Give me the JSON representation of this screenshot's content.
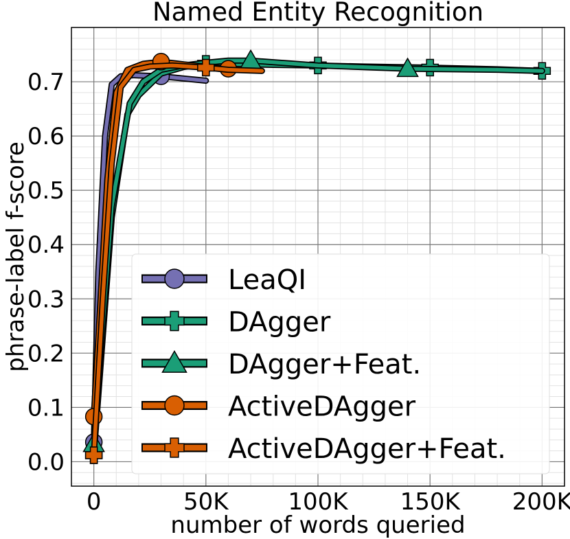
{
  "chart_data": {
    "type": "line",
    "title": "Named Entity Recognition",
    "xlabel": "number of words queried",
    "ylabel": "phrase-label f-score",
    "xlim": [
      -10000,
      210000
    ],
    "ylim": [
      -0.045,
      0.8
    ],
    "x_ticks": [
      0,
      50000,
      100000,
      150000,
      200000
    ],
    "x_tick_labels": [
      "0",
      "50K",
      "100K",
      "150K",
      "200K"
    ],
    "y_ticks": [
      0.0,
      0.1,
      0.2,
      0.3,
      0.4,
      0.5,
      0.6,
      0.7
    ],
    "y_tick_labels": [
      "0.0",
      "0.1",
      "0.2",
      "0.3",
      "0.4",
      "0.5",
      "0.6",
      "0.7"
    ],
    "grid": true,
    "legend_position": "bottom-right",
    "series": [
      {
        "name": "LeaQI",
        "color": "#7570b3",
        "marker": "circle",
        "x": [
          0,
          2000,
          5000,
          8000,
          12000,
          18000,
          30000,
          40000,
          50000
        ],
        "y": [
          0.036,
          0.35,
          0.6,
          0.695,
          0.71,
          0.712,
          0.71,
          0.706,
          0.702
        ],
        "markers_x": [
          0,
          30000
        ],
        "markers_y": [
          0.036,
          0.71
        ]
      },
      {
        "name": "DAgger",
        "color": "#1b9e77",
        "marker": "plus",
        "x": [
          0,
          8000,
          15000,
          20000,
          30000,
          40000,
          50000,
          60000,
          80000,
          100000,
          120000,
          150000,
          180000,
          200000
        ],
        "y": [
          0.012,
          0.45,
          0.64,
          0.675,
          0.715,
          0.727,
          0.733,
          0.733,
          0.731,
          0.73,
          0.728,
          0.726,
          0.723,
          0.72
        ],
        "markers_x": [
          0,
          50000,
          100000,
          150000,
          200000
        ],
        "markers_y": [
          0.012,
          0.733,
          0.73,
          0.726,
          0.72
        ]
      },
      {
        "name": "DAgger+Feat.",
        "color": "#1b9e77",
        "marker": "triangle",
        "x": [
          0,
          8000,
          16000,
          22000,
          30000,
          40000,
          50000,
          60000,
          70000,
          80000,
          100000,
          120000,
          140000,
          160000,
          180000,
          200000
        ],
        "y": [
          0.033,
          0.47,
          0.66,
          0.7,
          0.722,
          0.73,
          0.735,
          0.739,
          0.739,
          0.736,
          0.73,
          0.727,
          0.724,
          0.723,
          0.722,
          0.72
        ],
        "markers_x": [
          0,
          70000,
          140000
        ],
        "markers_y": [
          0.033,
          0.739,
          0.724
        ]
      },
      {
        "name": "ActiveDAgger",
        "color": "#d95f02",
        "marker": "circle",
        "x": [
          0,
          3000,
          6000,
          10000,
          15000,
          22000,
          30000,
          40000,
          50000,
          60000
        ],
        "y": [
          0.083,
          0.3,
          0.52,
          0.68,
          0.722,
          0.733,
          0.737,
          0.732,
          0.728,
          0.724
        ],
        "markers_x": [
          0,
          30000,
          60000
        ],
        "markers_y": [
          0.083,
          0.737,
          0.724
        ]
      },
      {
        "name": "ActiveDAgger+Feat.",
        "color": "#d95f02",
        "marker": "plus",
        "x": [
          0,
          4000,
          8000,
          12000,
          18000,
          25000,
          35000,
          50000,
          60000,
          75000
        ],
        "y": [
          0.012,
          0.3,
          0.55,
          0.69,
          0.722,
          0.728,
          0.73,
          0.726,
          0.722,
          0.72
        ],
        "markers_x": [
          0,
          50000
        ],
        "markers_y": [
          0.012,
          0.726
        ]
      }
    ]
  }
}
